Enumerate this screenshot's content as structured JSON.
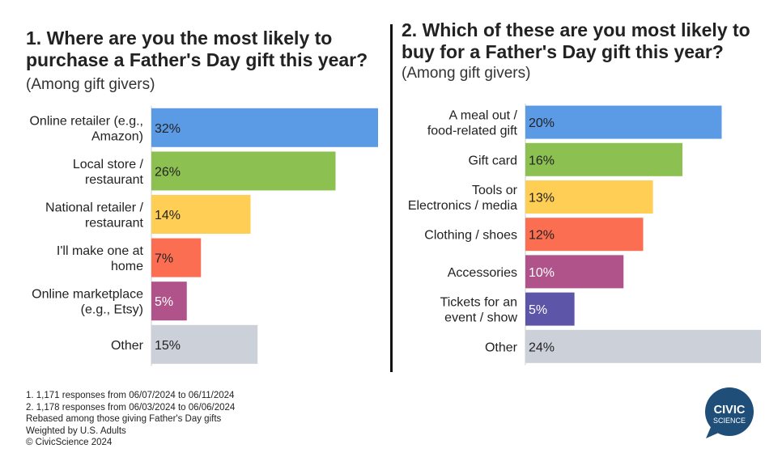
{
  "chart_data": [
    {
      "type": "bar",
      "orientation": "horizontal",
      "title": "1. Where are you the most likely to purchase a Father's Day gift this year?",
      "title_lines": [
        "1. Where are you the most likely to",
        "purchase a Father's Day gift this year?"
      ],
      "subtitle": "(Among gift givers)",
      "categories": [
        [
          "Online retailer (e.g.,",
          "Amazon)"
        ],
        [
          "Local store /",
          "restaurant"
        ],
        [
          "National retailer /",
          "restaurant"
        ],
        [
          "I'll make one at",
          "home"
        ],
        [
          "Online marketplace",
          "(e.g., Etsy)"
        ],
        [
          "Other"
        ]
      ],
      "values": [
        32,
        26,
        14,
        7,
        5,
        15
      ],
      "value_labels": [
        "32%",
        "26%",
        "14%",
        "7%",
        "5%",
        "15%"
      ],
      "colors": [
        "#5b9be6",
        "#8cc152",
        "#ffce54",
        "#fc6e51",
        "#b0538a",
        "#ccd1d9"
      ],
      "label_colors": [
        "#222222",
        "#222222",
        "#222222",
        "#222222",
        "#ffffff",
        "#222222"
      ],
      "xlim": [
        0,
        32
      ],
      "grid": false
    },
    {
      "type": "bar",
      "orientation": "horizontal",
      "title": "2. Which of these are you most likely to buy for a Father's Day gift this year?",
      "title_lines": [
        "2. Which of these are you most likely to",
        "buy for a Father's Day gift this year?"
      ],
      "subtitle": "(Among gift givers)",
      "categories": [
        [
          "A meal out /",
          "food-related gift"
        ],
        [
          "Gift card"
        ],
        [
          "Tools or",
          "Electronics / media"
        ],
        [
          "Clothing / shoes"
        ],
        [
          "Accessories"
        ],
        [
          "Tickets for an",
          "event / show"
        ],
        [
          "Other"
        ]
      ],
      "values": [
        20,
        16,
        13,
        12,
        10,
        5,
        24
      ],
      "value_labels": [
        "20%",
        "16%",
        "13%",
        "12%",
        "10%",
        "5%",
        "24%"
      ],
      "colors": [
        "#5b9be6",
        "#8cc152",
        "#ffce54",
        "#fc6e51",
        "#b0538a",
        "#5d55a8",
        "#ccd1d9"
      ],
      "label_colors": [
        "#222222",
        "#222222",
        "#222222",
        "#222222",
        "#ffffff",
        "#ffffff",
        "#222222"
      ],
      "xlim": [
        0,
        24
      ],
      "grid": false
    }
  ],
  "footnotes": [
    "1. 1,171 responses from 06/07/2024 to 06/11/2024",
    "2. 1,178 responses from 06/03/2024 to 06/06/2024",
    "Rebased among those giving Father's Day gifts",
    "Weighted by U.S. Adults",
    "© CivicScience 2024"
  ],
  "logo": {
    "line1": "CIVIC",
    "line2": "SCIENCE",
    "color": "#1f4e79"
  }
}
